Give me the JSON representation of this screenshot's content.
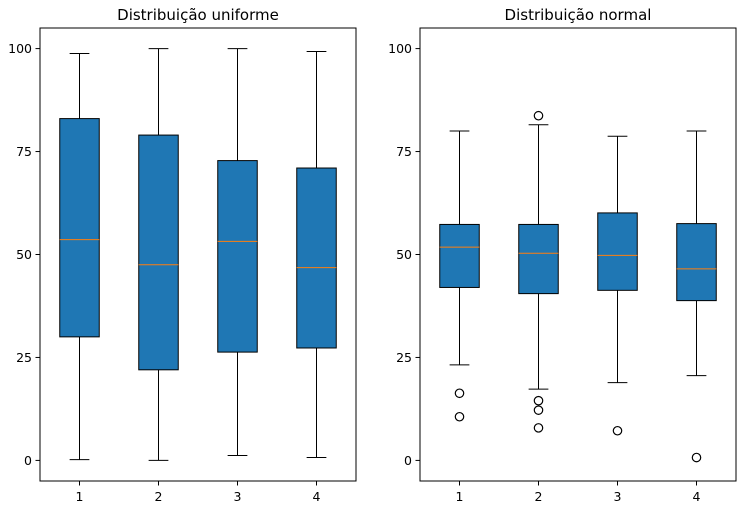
{
  "chart_data": [
    {
      "type": "boxplot",
      "title": "Distribuição uniforme",
      "categories": [
        "1",
        "2",
        "3",
        "4"
      ],
      "ylim": [
        -5,
        105
      ],
      "yticks": [
        0,
        25,
        50,
        75,
        100
      ],
      "boxes": [
        {
          "whisker_low": 0.2,
          "q1": 30.0,
          "median": 53.6,
          "q3": 83.0,
          "whisker_high": 98.8,
          "fliers": []
        },
        {
          "whisker_low": 0.0,
          "q1": 22.0,
          "median": 47.5,
          "q3": 79.0,
          "whisker_high": 100.0,
          "fliers": []
        },
        {
          "whisker_low": 1.2,
          "q1": 26.3,
          "median": 53.2,
          "q3": 72.8,
          "whisker_high": 100.0,
          "fliers": []
        },
        {
          "whisker_low": 0.7,
          "q1": 27.3,
          "median": 46.8,
          "q3": 71.0,
          "whisker_high": 99.3,
          "fliers": []
        }
      ]
    },
    {
      "type": "boxplot",
      "title": "Distribuição normal",
      "categories": [
        "1",
        "2",
        "3",
        "4"
      ],
      "ylim": [
        -5,
        105
      ],
      "yticks": [
        0,
        25,
        50,
        75,
        100
      ],
      "boxes": [
        {
          "whisker_low": 23.2,
          "q1": 42.0,
          "median": 51.8,
          "q3": 57.3,
          "whisker_high": 80.0,
          "fliers": [
            16.3,
            10.6
          ]
        },
        {
          "whisker_low": 17.3,
          "q1": 40.5,
          "median": 50.3,
          "q3": 57.3,
          "whisker_high": 81.5,
          "fliers": [
            83.7,
            14.5,
            12.2,
            7.9
          ]
        },
        {
          "whisker_low": 18.9,
          "q1": 41.3,
          "median": 49.8,
          "q3": 60.1,
          "whisker_high": 78.7,
          "fliers": [
            7.2
          ]
        },
        {
          "whisker_low": 20.6,
          "q1": 38.8,
          "median": 46.5,
          "q3": 57.5,
          "whisker_high": 80.0,
          "fliers": [
            0.7
          ]
        }
      ]
    }
  ],
  "colors": {
    "box_fill": "#1f77b4",
    "median": "#ff7f0e",
    "line": "#000000"
  }
}
